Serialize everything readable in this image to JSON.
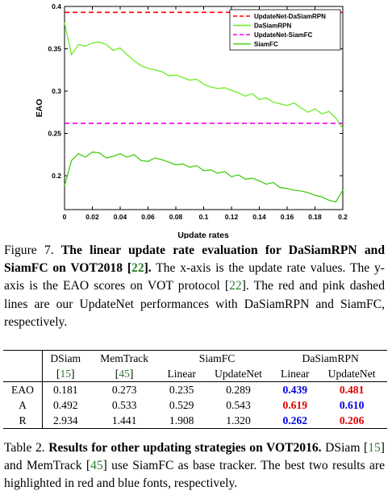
{
  "chart_data": {
    "type": "line",
    "xlabel": "Update rates",
    "ylabel": "EAO",
    "xlim": [
      0,
      0.2
    ],
    "ylim": [
      0.16,
      0.4
    ],
    "xticks": [
      "0",
      "0.02",
      "0.04",
      "0.06",
      "0.08",
      "0.1",
      "0.12",
      "0.14",
      "0.16",
      "0.18",
      "0.2"
    ],
    "yticks": [
      "0.2",
      "0.25",
      "0.3",
      "0.35",
      "0.4"
    ],
    "legend_position": "top-right",
    "series": [
      {
        "name": "UpdateNet-DaSiamRPN",
        "color": "#ff0000",
        "style": "dashed",
        "constant": 0.393
      },
      {
        "name": "DaSiamRPN",
        "color": "#66ee22",
        "style": "solid",
        "x": [
          0,
          0.005,
          0.01,
          0.015,
          0.02,
          0.025,
          0.03,
          0.035,
          0.04,
          0.045,
          0.05,
          0.055,
          0.06,
          0.065,
          0.07,
          0.075,
          0.08,
          0.085,
          0.09,
          0.095,
          0.1,
          0.105,
          0.11,
          0.115,
          0.12,
          0.125,
          0.13,
          0.135,
          0.14,
          0.145,
          0.15,
          0.155,
          0.16,
          0.165,
          0.17,
          0.175,
          0.18,
          0.185,
          0.19,
          0.195,
          0.2
        ],
        "y": [
          0.381,
          0.343,
          0.355,
          0.353,
          0.357,
          0.358,
          0.355,
          0.348,
          0.351,
          0.343,
          0.336,
          0.33,
          0.327,
          0.325,
          0.323,
          0.318,
          0.319,
          0.316,
          0.313,
          0.314,
          0.308,
          0.305,
          0.303,
          0.304,
          0.301,
          0.298,
          0.294,
          0.297,
          0.29,
          0.292,
          0.287,
          0.285,
          0.283,
          0.286,
          0.28,
          0.275,
          0.279,
          0.273,
          0.276,
          0.268,
          0.256
        ]
      },
      {
        "name": "UpdateNet-SiamFC",
        "color": "#ee00ee",
        "style": "dashed",
        "constant": 0.262
      },
      {
        "name": "SiamFC",
        "color": "#44cc11",
        "style": "solid",
        "x": [
          0,
          0.005,
          0.01,
          0.015,
          0.02,
          0.025,
          0.03,
          0.035,
          0.04,
          0.045,
          0.05,
          0.055,
          0.06,
          0.065,
          0.07,
          0.075,
          0.08,
          0.085,
          0.09,
          0.095,
          0.1,
          0.105,
          0.11,
          0.115,
          0.12,
          0.125,
          0.13,
          0.135,
          0.14,
          0.145,
          0.15,
          0.155,
          0.16,
          0.165,
          0.17,
          0.175,
          0.18,
          0.185,
          0.19,
          0.195,
          0.2
        ],
        "y": [
          0.188,
          0.218,
          0.226,
          0.222,
          0.228,
          0.227,
          0.221,
          0.223,
          0.226,
          0.222,
          0.225,
          0.218,
          0.217,
          0.221,
          0.219,
          0.216,
          0.213,
          0.214,
          0.21,
          0.212,
          0.206,
          0.207,
          0.203,
          0.205,
          0.199,
          0.201,
          0.196,
          0.197,
          0.194,
          0.19,
          0.192,
          0.186,
          0.185,
          0.183,
          0.182,
          0.18,
          0.177,
          0.175,
          0.171,
          0.169,
          0.183
        ]
      }
    ]
  },
  "figure_caption": {
    "label": "Figure 7.",
    "bold_text": "The linear update rate evaluation for DaSiamRPN and SiamFC on VOT2018 ",
    "bold_cite": "22",
    "bold_end": "].",
    "text_1": " The x-axis is the update rate values. The y-axis is the EAO scores on VOT protocol ",
    "cite_2": "22",
    "text_2": "]. The red and pink dashed lines are our UpdateNet performances with DaSiamRPN and SiamFC, respectively."
  },
  "table": {
    "headers": {
      "dsiam": "DSiam",
      "dsiam_cite": "15",
      "memtrack": "MemTrack",
      "memtrack_cite": "45",
      "siamfc": "SiamFC",
      "dasiamrpn": "DaSiamRPN",
      "linear": "Linear",
      "updatenet": "UpdateNet"
    },
    "rows": [
      {
        "label": "EAO",
        "dsiam": "0.181",
        "memtrack": "0.273",
        "siamfc_linear": "0.235",
        "siamfc_updatenet": "0.289",
        "dasiam_linear": "0.439",
        "dasiam_updatenet": "0.481"
      },
      {
        "label": "A",
        "dsiam": "0.492",
        "memtrack": "0.533",
        "siamfc_linear": "0.529",
        "siamfc_updatenet": "0.543",
        "dasiam_linear": "0.619",
        "dasiam_updatenet": "0.610"
      },
      {
        "label": "R",
        "dsiam": "2.934",
        "memtrack": "1.441",
        "siamfc_linear": "1.908",
        "siamfc_updatenet": "1.320",
        "dasiam_linear": "0.262",
        "dasiam_updatenet": "0.206"
      }
    ]
  },
  "table_caption": {
    "label": "Table 2.",
    "bold_text": "Results for other updating strategies on VOT2016.",
    "text_1": " DSiam ",
    "cite_1": "15",
    "text_2": "] and MemTrack ",
    "cite_2": "45",
    "text_3": "] use SiamFC as base tracker. The best two results are highlighted in red and blue fonts, respectively."
  }
}
